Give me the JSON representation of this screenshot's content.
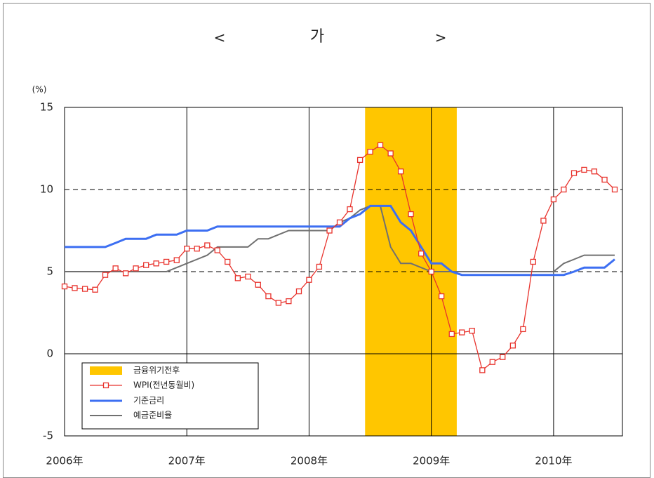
{
  "chart_data": {
    "type": "line",
    "title": "가",
    "title_brackets": [
      "<",
      ">"
    ],
    "y_label": "(%)",
    "x": [
      2006,
      2006.083,
      2006.167,
      2006.25,
      2006.333,
      2006.417,
      2006.5,
      2006.583,
      2006.667,
      2006.75,
      2006.833,
      2006.917,
      2007,
      2007.083,
      2007.167,
      2007.25,
      2007.333,
      2007.417,
      2007.5,
      2007.583,
      2007.667,
      2007.75,
      2007.833,
      2007.917,
      2008,
      2008.083,
      2008.167,
      2008.25,
      2008.333,
      2008.417,
      2008.5,
      2008.583,
      2008.667,
      2008.75,
      2008.833,
      2008.917,
      2009,
      2009.083,
      2009.167,
      2009.25,
      2009.333,
      2009.417,
      2009.5,
      2009.583,
      2009.667,
      2009.75,
      2009.833,
      2009.917,
      2010,
      2010.083,
      2010.167,
      2010.25,
      2010.333,
      2010.417,
      2010.5
    ],
    "series": [
      {
        "name": "WPI(전년동월비)",
        "color": "#e8322c",
        "marker": "square",
        "values": [
          4.1,
          4.0,
          3.95,
          3.9,
          4.8,
          5.2,
          4.9,
          5.2,
          5.4,
          5.5,
          5.6,
          5.7,
          6.4,
          6.4,
          6.6,
          6.3,
          5.6,
          4.6,
          4.7,
          4.2,
          3.5,
          3.1,
          3.2,
          3.8,
          4.5,
          5.3,
          7.5,
          8.0,
          8.8,
          11.8,
          12.3,
          12.7,
          12.2,
          11.1,
          8.5,
          6.1,
          5.0,
          3.5,
          1.2,
          1.3,
          1.4,
          -1.0,
          -0.5,
          -0.2,
          0.5,
          1.5,
          5.6,
          8.1,
          9.4,
          10.0,
          11.0,
          11.2,
          11.1,
          10.6,
          10.0
        ]
      },
      {
        "name": "기준금리",
        "color": "#3d6ff2",
        "values": [
          6.5,
          6.5,
          6.5,
          6.5,
          6.5,
          6.75,
          7.0,
          7.0,
          7.0,
          7.25,
          7.25,
          7.25,
          7.5,
          7.5,
          7.5,
          7.75,
          7.75,
          7.75,
          7.75,
          7.75,
          7.75,
          7.75,
          7.75,
          7.75,
          7.75,
          7.75,
          7.75,
          7.75,
          8.25,
          8.5,
          9.0,
          9.0,
          9.0,
          8.0,
          7.5,
          6.5,
          5.5,
          5.5,
          5.0,
          4.8,
          4.8,
          4.8,
          4.8,
          4.8,
          4.8,
          4.8,
          4.8,
          4.8,
          4.8,
          4.8,
          5.0,
          5.25,
          5.25,
          5.25,
          5.75
        ]
      },
      {
        "name": "예금준비율",
        "color": "#707070",
        "values": [
          5,
          5,
          5,
          5,
          5,
          5,
          5,
          5,
          5,
          5,
          5,
          5.25,
          5.5,
          5.75,
          6.0,
          6.5,
          6.5,
          6.5,
          6.5,
          7.0,
          7.0,
          7.25,
          7.5,
          7.5,
          7.5,
          7.5,
          7.5,
          8.0,
          8.25,
          8.75,
          9.0,
          9.0,
          6.5,
          5.5,
          5.5,
          5.25,
          5,
          5,
          5,
          5,
          5,
          5,
          5,
          5,
          5,
          5,
          5,
          5,
          5,
          5.5,
          5.75,
          6.0,
          6.0,
          6.0,
          6.0
        ]
      }
    ],
    "shade": {
      "name": "금융위기전후",
      "color": "#ffc600",
      "x": [
        2008.458,
        2009.208
      ]
    },
    "xlim": [
      2006,
      2010.563
    ],
    "xticks": [
      {
        "value": 2006,
        "label": "2006年"
      },
      {
        "value": 2007,
        "label": "2007年"
      },
      {
        "value": 2008,
        "label": "2008年"
      },
      {
        "value": 2009,
        "label": "2009年"
      },
      {
        "value": 2010,
        "label": "2010年"
      }
    ],
    "ylim": [
      -5,
      15
    ],
    "yticks": [
      -5,
      0,
      5,
      10,
      15
    ],
    "dashed_grid": [
      5,
      10
    ],
    "legend": "lower left"
  }
}
